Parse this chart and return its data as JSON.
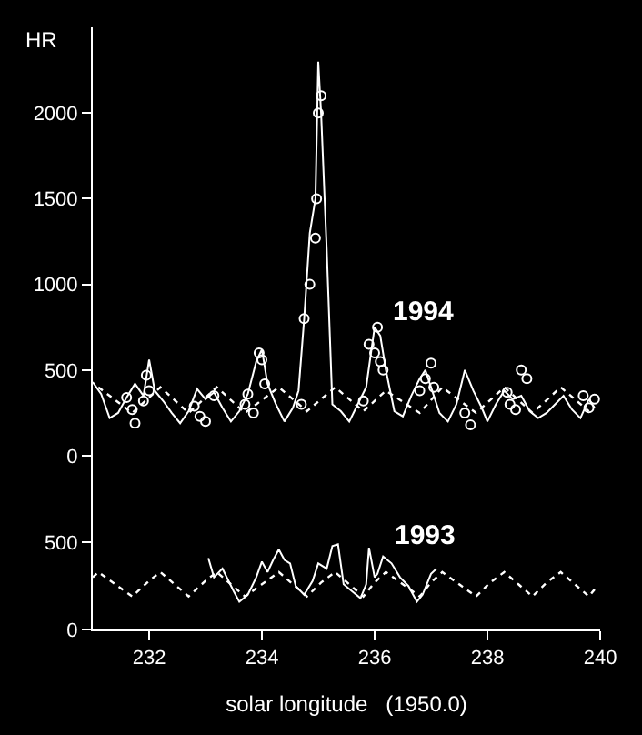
{
  "chart_data": [
    {
      "type": "line",
      "ylabel": "HR",
      "xlim": [
        231,
        240
      ],
      "ylim": [
        -100,
        2500
      ],
      "yticks": [
        0,
        500,
        1000,
        1500,
        2000
      ],
      "xticks": [
        232,
        234,
        236,
        238,
        240
      ],
      "tick_labels": "y",
      "grid": false,
      "annotations": [
        "1994"
      ],
      "series": [
        {
          "color": "#ffffff",
          "line_style": "solid",
          "marker": "none",
          "x": [
            231.0,
            231.15,
            231.3,
            231.45,
            231.6,
            231.75,
            231.9,
            232.0,
            232.1,
            232.25,
            232.4,
            232.55,
            232.7,
            232.85,
            233.0,
            233.15,
            233.3,
            233.45,
            233.6,
            233.75,
            233.9,
            234.0,
            234.1,
            234.25,
            234.4,
            234.55,
            234.65,
            234.75,
            234.85,
            234.95,
            235.0,
            235.05,
            235.15,
            235.25,
            235.4,
            235.55,
            235.7,
            235.85,
            236.0,
            236.1,
            236.2,
            236.35,
            236.5,
            236.65,
            236.8,
            236.9,
            237.0,
            237.15,
            237.3,
            237.45,
            237.6,
            237.75,
            237.9,
            238.0,
            238.15,
            238.3,
            238.45,
            238.6,
            238.75,
            238.9,
            239.05,
            239.2,
            239.35,
            239.5,
            239.65,
            239.8,
            239.9
          ],
          "values": [
            430,
            360,
            220,
            250,
            340,
            420,
            350,
            560,
            380,
            320,
            250,
            190,
            260,
            390,
            330,
            370,
            280,
            200,
            260,
            360,
            550,
            620,
            420,
            300,
            200,
            280,
            380,
            800,
            1300,
            1500,
            2300,
            2000,
            1200,
            300,
            260,
            200,
            300,
            400,
            750,
            700,
            500,
            260,
            230,
            350,
            450,
            500,
            400,
            250,
            200,
            300,
            500,
            380,
            280,
            200,
            300,
            380,
            330,
            350,
            260,
            220,
            250,
            300,
            350,
            270,
            220,
            330,
            280
          ]
        },
        {
          "type": "scatter",
          "color": "#ffffff",
          "marker": "circle",
          "x": [
            231.6,
            231.7,
            231.75,
            231.9,
            231.95,
            232.0,
            232.8,
            232.9,
            233.0,
            233.15,
            233.7,
            233.75,
            233.85,
            233.95,
            234.0,
            234.05,
            234.7,
            234.75,
            234.85,
            234.95,
            234.97,
            235.0,
            235.05,
            235.8,
            235.9,
            236.0,
            236.05,
            236.1,
            236.15,
            236.8,
            236.9,
            237.0,
            237.05,
            237.6,
            237.7,
            238.35,
            238.4,
            238.5,
            238.6,
            238.7,
            239.7,
            239.8,
            239.9
          ],
          "values": [
            340,
            270,
            190,
            320,
            470,
            380,
            290,
            230,
            200,
            350,
            300,
            360,
            250,
            600,
            560,
            420,
            300,
            800,
            1000,
            1270,
            1500,
            2000,
            2100,
            320,
            650,
            600,
            750,
            550,
            500,
            380,
            450,
            540,
            400,
            250,
            180,
            370,
            300,
            270,
            500,
            450,
            350,
            280,
            330
          ]
        },
        {
          "color": "#ffffff",
          "line_style": "dotted",
          "marker": "none",
          "x": [
            231.1,
            231.7,
            232.2,
            232.7,
            233.2,
            233.7,
            234.3,
            234.8,
            235.3,
            235.8,
            236.2,
            236.8,
            237.2,
            237.8,
            238.3,
            238.8,
            239.3,
            239.8
          ],
          "values": [
            400,
            250,
            400,
            250,
            400,
            250,
            400,
            260,
            400,
            260,
            380,
            250,
            400,
            250,
            400,
            250,
            400,
            260
          ]
        }
      ]
    },
    {
      "type": "line",
      "xlabel": "solar longitude   (1950.0)",
      "xlim": [
        231,
        240
      ],
      "ylim": [
        0,
        900
      ],
      "yticks": [
        0,
        500
      ],
      "xticks": [
        232,
        234,
        236,
        238,
        240
      ],
      "grid": false,
      "annotations": [
        "1993"
      ],
      "series": [
        {
          "color": "#ffffff",
          "line_style": "solid",
          "marker": "none",
          "x": [
            233.05,
            233.15,
            233.3,
            233.5,
            233.6,
            233.75,
            233.9,
            234.0,
            234.1,
            234.2,
            234.3,
            234.4,
            234.5,
            234.6,
            234.75,
            234.9,
            235.0,
            235.15,
            235.25,
            235.35,
            235.45,
            235.6,
            235.75,
            235.85,
            235.9,
            236.0,
            236.05,
            236.15,
            236.3,
            236.45,
            236.6,
            236.75,
            236.85,
            237.0,
            237.1
          ],
          "values": [
            410,
            300,
            350,
            220,
            160,
            200,
            300,
            390,
            330,
            400,
            460,
            400,
            380,
            250,
            200,
            280,
            380,
            350,
            480,
            490,
            260,
            220,
            180,
            260,
            470,
            300,
            320,
            420,
            380,
            300,
            250,
            160,
            200,
            320,
            350
          ]
        },
        {
          "color": "#ffffff",
          "line_style": "dotted",
          "marker": "none",
          "x": [
            231.0,
            231.1,
            231.4,
            231.7,
            232.0,
            232.2,
            232.45,
            232.7,
            233.0,
            233.2,
            233.45,
            233.7,
            234.0,
            234.3,
            234.55,
            234.8,
            235.05,
            235.3,
            235.55,
            235.8,
            236.0,
            236.2,
            236.5,
            236.8,
            237.0,
            237.2,
            237.5,
            237.8,
            238.05,
            238.3,
            238.55,
            238.8,
            239.05,
            239.3,
            239.55,
            239.8,
            239.95
          ],
          "values": [
            300,
            330,
            260,
            190,
            280,
            330,
            260,
            190,
            280,
            330,
            260,
            190,
            260,
            330,
            260,
            190,
            270,
            330,
            260,
            190,
            270,
            330,
            260,
            190,
            270,
            330,
            260,
            190,
            270,
            330,
            260,
            190,
            270,
            330,
            260,
            190,
            250
          ]
        }
      ]
    }
  ]
}
